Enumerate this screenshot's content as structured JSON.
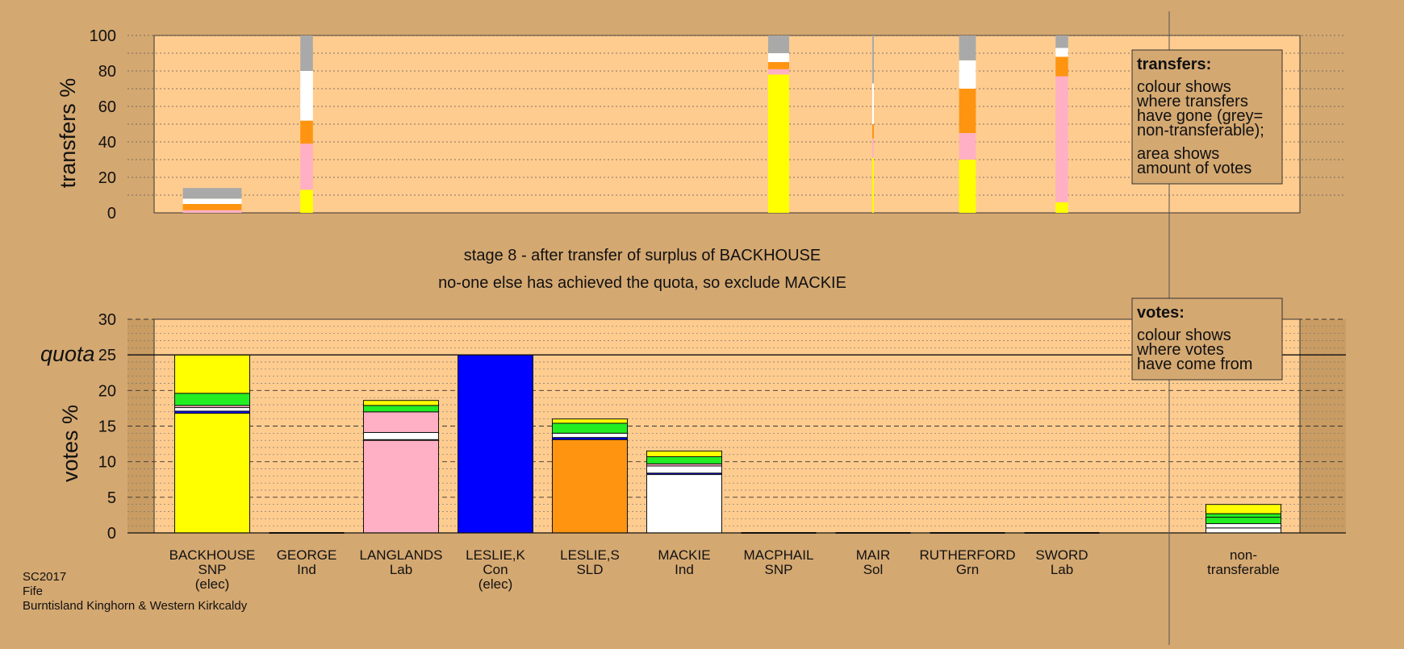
{
  "stage_text": "stage 8 - after transfer of surplus of BACKHOUSE",
  "exclude_text": "no-one else has achieved the quota, so exclude MACKIE",
  "footer": {
    "line1": "SC2017",
    "line2": "Fife",
    "line3": "Burntisland Kinghorn & Western Kirkcaldy"
  },
  "legend_transfers": {
    "heading": "transfers:",
    "lines": [
      "colour shows",
      "where transfers",
      "have gone (grey=",
      "non-transferable);",
      "area shows",
      "amount of votes"
    ]
  },
  "legend_votes": {
    "heading": "votes:",
    "lines": [
      "colour shows",
      "where votes",
      "have come from"
    ]
  },
  "colors": {
    "background": "#d4a871",
    "plot": "#ffcc8f",
    "SNP": "#ffff00",
    "Lab": "#ffb0c4",
    "Con": "#0000ff",
    "SLD": "#ff9411",
    "Ind": "#ffffff",
    "Grn": "#22ee22",
    "Sol": "#d8d8d8",
    "nontransferable": "#a9a9a9"
  },
  "chart_data": [
    {
      "type": "bar",
      "stacked": true,
      "ylabel": "transfers %",
      "ylim": [
        0,
        100
      ],
      "yticks": [
        0,
        20,
        40,
        60,
        80,
        100
      ],
      "grid": true,
      "categories": [
        "BACKHOUSE",
        "GEORGE",
        "LANGLANDS",
        "LESLIE,K",
        "LESLIE,S",
        "MACKIE",
        "MACPHAIL",
        "MAIR",
        "RUTHERFORD",
        "SWORD"
      ],
      "bars": [
        {
          "candidate": "BACKHOUSE",
          "width_share": 0.14,
          "segments": [
            {
              "to": "Lab",
              "value": 1.5
            },
            {
              "to": "SLD",
              "value": 3.5
            },
            {
              "to": "Ind",
              "value": 3
            },
            {
              "to": "nontransferable",
              "value": 6
            }
          ]
        },
        {
          "candidate": "GEORGE",
          "width_share": 0.03,
          "segments": [
            {
              "to": "SNP",
              "value": 13
            },
            {
              "to": "Lab",
              "value": 26
            },
            {
              "to": "SLD",
              "value": 13
            },
            {
              "to": "Ind",
              "value": 28
            },
            {
              "to": "nontransferable",
              "value": 20
            }
          ]
        },
        {
          "candidate": "MACPHAIL",
          "width_share": 0.05,
          "segments": [
            {
              "to": "SNP",
              "value": 78
            },
            {
              "to": "Lab",
              "value": 3
            },
            {
              "to": "SLD",
              "value": 4
            },
            {
              "to": "Ind",
              "value": 5
            },
            {
              "to": "nontransferable",
              "value": 10
            }
          ]
        },
        {
          "candidate": "MAIR",
          "width_share": 0.003,
          "segments": [
            {
              "to": "SNP",
              "value": 31
            },
            {
              "to": "Lab",
              "value": 11
            },
            {
              "to": "SLD",
              "value": 8
            },
            {
              "to": "Ind",
              "value": 23
            },
            {
              "to": "nontransferable",
              "value": 27
            }
          ]
        },
        {
          "candidate": "RUTHERFORD",
          "width_share": 0.04,
          "segments": [
            {
              "to": "SNP",
              "value": 30
            },
            {
              "to": "Lab",
              "value": 15
            },
            {
              "to": "SLD",
              "value": 25
            },
            {
              "to": "Ind",
              "value": 16
            },
            {
              "to": "nontransferable",
              "value": 14
            }
          ]
        },
        {
          "candidate": "SWORD",
          "width_share": 0.03,
          "segments": [
            {
              "to": "SNP",
              "value": 6
            },
            {
              "to": "Lab",
              "value": 71
            },
            {
              "to": "SLD",
              "value": 11
            },
            {
              "to": "Ind",
              "value": 5
            },
            {
              "to": "nontransferable",
              "value": 7
            }
          ]
        }
      ]
    },
    {
      "type": "bar",
      "stacked": true,
      "ylabel": "votes %",
      "ylim": [
        0,
        30
      ],
      "yticks": [
        0,
        5,
        10,
        15,
        20,
        25,
        30
      ],
      "quota": 25,
      "quota_label": "quota",
      "grid": true,
      "categories": [
        {
          "name": "BACKHOUSE",
          "party": "SNP",
          "note": "(elec)"
        },
        {
          "name": "GEORGE",
          "party": "Ind",
          "note": ""
        },
        {
          "name": "LANGLANDS",
          "party": "Lab",
          "note": ""
        },
        {
          "name": "LESLIE,K",
          "party": "Con",
          "note": "(elec)"
        },
        {
          "name": "LESLIE,S",
          "party": "SLD",
          "note": ""
        },
        {
          "name": "MACKIE",
          "party": "Ind",
          "note": ""
        },
        {
          "name": "MACPHAIL",
          "party": "SNP",
          "note": ""
        },
        {
          "name": "MAIR",
          "party": "Sol",
          "note": ""
        },
        {
          "name": "RUTHERFORD",
          "party": "Grn",
          "note": ""
        },
        {
          "name": "SWORD",
          "party": "Lab",
          "note": ""
        }
      ],
      "nontransferable_label": [
        "non-",
        "transferable"
      ],
      "stacks": [
        {
          "candidate": "BACKHOUSE",
          "segments": [
            {
              "from": "SNP",
              "value": 16.8
            },
            {
              "from": "Con",
              "value": 0.3
            },
            {
              "from": "Ind",
              "value": 0.5
            },
            {
              "from": "Lab",
              "value": 0.3
            },
            {
              "from": "Grn",
              "value": 1.7
            },
            {
              "from": "SNP",
              "value": 5.4
            }
          ]
        },
        {
          "candidate": "GEORGE",
          "segments": []
        },
        {
          "candidate": "LANGLANDS",
          "segments": [
            {
              "from": "Lab",
              "value": 13.0
            },
            {
              "from": "Con",
              "value": 0.1
            },
            {
              "from": "Ind",
              "value": 1.0
            },
            {
              "from": "Lab",
              "value": 2.9
            },
            {
              "from": "Grn",
              "value": 0.9
            },
            {
              "from": "SNP",
              "value": 0.7
            }
          ]
        },
        {
          "candidate": "LESLIE,K",
          "segments": [
            {
              "from": "Con",
              "value": 25.0
            }
          ]
        },
        {
          "candidate": "LESLIE,S",
          "segments": [
            {
              "from": "SLD",
              "value": 13.1
            },
            {
              "from": "Con",
              "value": 0.3
            },
            {
              "from": "Ind",
              "value": 0.6
            },
            {
              "from": "Grn",
              "value": 1.4
            },
            {
              "from": "SNP",
              "value": 0.6
            }
          ]
        },
        {
          "candidate": "MACKIE",
          "segments": [
            {
              "from": "Ind",
              "value": 8.2
            },
            {
              "from": "Con",
              "value": 0.2
            },
            {
              "from": "Ind",
              "value": 1.0
            },
            {
              "from": "Lab",
              "value": 0.3
            },
            {
              "from": "Grn",
              "value": 1.0
            },
            {
              "from": "SNP",
              "value": 0.8
            }
          ]
        },
        {
          "candidate": "MACPHAIL",
          "segments": []
        },
        {
          "candidate": "MAIR",
          "segments": []
        },
        {
          "candidate": "RUTHERFORD",
          "segments": []
        },
        {
          "candidate": "SWORD",
          "segments": []
        },
        {
          "candidate": "non-transferable",
          "segments": [
            {
              "from": "Ind",
              "value": 0.7
            },
            {
              "from": "Ind",
              "value": 0.6
            },
            {
              "from": "Grn",
              "value": 0.9
            },
            {
              "from": "Grn",
              "value": 0.5
            },
            {
              "from": "SNP",
              "value": 1.3
            }
          ]
        }
      ]
    }
  ]
}
